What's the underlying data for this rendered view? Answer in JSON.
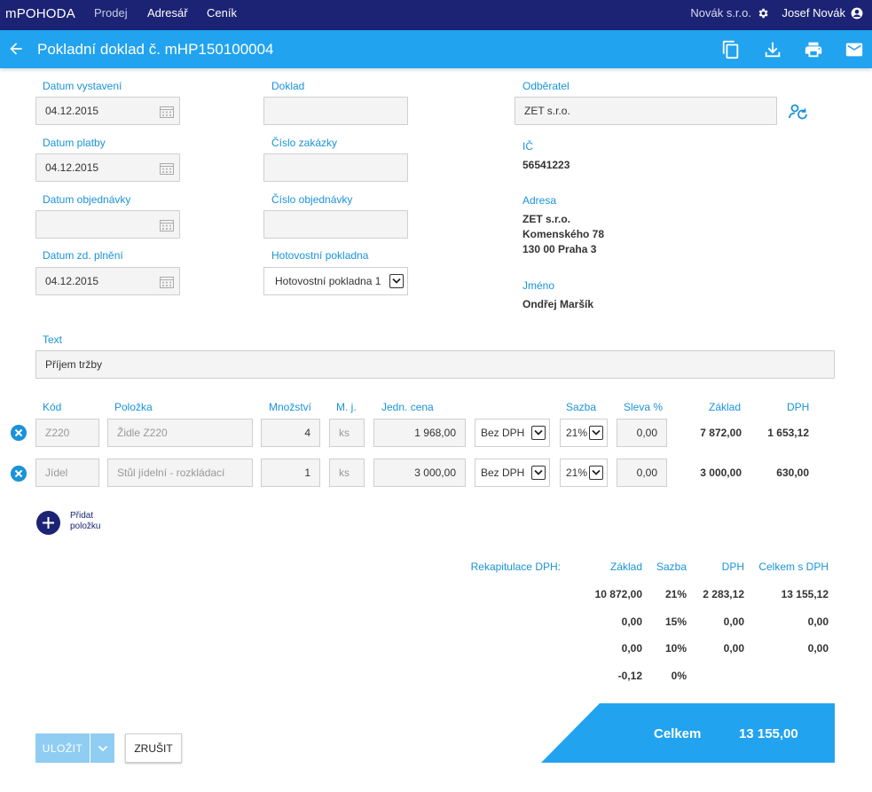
{
  "nav": {
    "brand": "mPOHODA",
    "links": [
      "Prodej",
      "Adresář",
      "Ceník"
    ],
    "company": "Novák s.r.o.",
    "user": "Josef Novák"
  },
  "titlebar": {
    "title": "Pokladní doklad č. mHP150100004",
    "icons": [
      "arrow-left-icon",
      "copy-icon",
      "download-icon",
      "print-icon",
      "mail-icon"
    ]
  },
  "form": {
    "datum_vystaveni": {
      "label": "Datum vystavení",
      "value": "04.12.2015"
    },
    "datum_platby": {
      "label": "Datum platby",
      "value": "04.12.2015"
    },
    "datum_objednavky": {
      "label": "Datum objednávky",
      "value": ""
    },
    "datum_zd_plneni": {
      "label": "Datum zd. plnění",
      "value": "04.12.2015"
    },
    "doklad": {
      "label": "Doklad",
      "value": ""
    },
    "cislo_zakazky": {
      "label": "Číslo zakázky",
      "value": ""
    },
    "cislo_objednavky": {
      "label": "Číslo objednávky",
      "value": ""
    },
    "hotovostni_pokladna": {
      "label": "Hotovostní pokladna",
      "value": "Hotovostní pokladna 1"
    },
    "text": {
      "label": "Text",
      "value": "Příjem tržby"
    }
  },
  "customer": {
    "odberatel_label": "Odběratel",
    "odberatel_value": "ZET s.r.o.",
    "ic_label": "IČ",
    "ic_value": "56541223",
    "adresa_label": "Adresa",
    "adresa_lines": [
      "ZET s.r.o.",
      "Komenského 78",
      "130 00 Praha 3"
    ],
    "jmeno_label": "Jméno",
    "jmeno_value": "Ondřej Maršík"
  },
  "items": {
    "headers": [
      "Kód",
      "Položka",
      "Množství",
      "M. j.",
      "Jedn. cena",
      "Sazba",
      "Sleva %",
      "Základ",
      "DPH"
    ],
    "rows": [
      {
        "kod": "Z220",
        "polozka": "Židle Z220",
        "mnozstvi": "4",
        "mj": "ks",
        "cena": "1 968,00",
        "typ": "Bez DPH",
        "sazba": "21%",
        "sleva": "0,00",
        "zaklad": "7 872,00",
        "dph": "1 653,12"
      },
      {
        "kod": "Jídel",
        "polozka": "Stůl jídelní - rozkládací",
        "mnozstvi": "1",
        "mj": "ks",
        "cena": "3 000,00",
        "typ": "Bez DPH",
        "sazba": "21%",
        "sleva": "0,00",
        "zaklad": "3 000,00",
        "dph": "630,00"
      }
    ],
    "add_label_1": "Přidat",
    "add_label_2": "položku"
  },
  "recap": {
    "title": "Rekapitulace DPH:",
    "headers": [
      "Základ",
      "Sazba",
      "DPH",
      "Celkem s DPH"
    ],
    "rows": [
      [
        "10 872,00",
        "21%",
        "2 283,12",
        "13 155,12"
      ],
      [
        "0,00",
        "15%",
        "0,00",
        "0,00"
      ],
      [
        "0,00",
        "10%",
        "0,00",
        "0,00"
      ],
      [
        "-0,12",
        "0%",
        "",
        ""
      ]
    ]
  },
  "total": {
    "label": "Celkem",
    "value": "13 155,00"
  },
  "buttons": {
    "save": "ULOŽIT",
    "cancel": "ZRUŠIT"
  },
  "colors": {
    "nav": "#1c2374",
    "accent": "#21a3ef",
    "label": "#1a93d8"
  }
}
